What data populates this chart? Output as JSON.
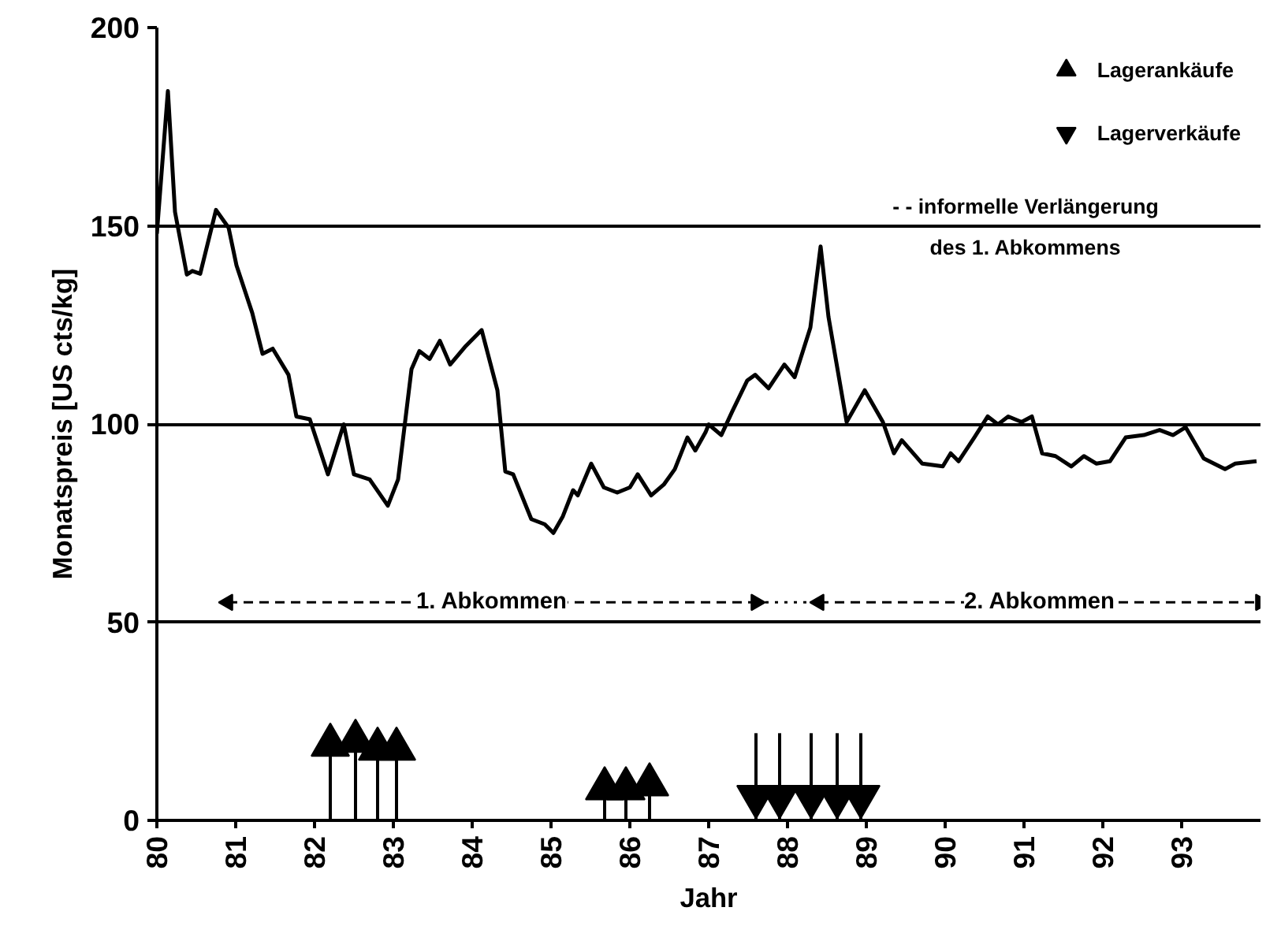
{
  "chart_data": {
    "type": "line",
    "xlabel": "Jahr",
    "ylabel": "Monatspreis [US cts/kg]",
    "xlim": [
      80,
      94
    ],
    "xticks": [
      80,
      81,
      82,
      83,
      84,
      85,
      86,
      87,
      88,
      89,
      90,
      91,
      92,
      93
    ],
    "ylim": [
      0,
      200
    ],
    "yticks": [
      0,
      50,
      100,
      150,
      200
    ],
    "grid": "y",
    "legend": "top right",
    "series": [
      {
        "color": "#000000",
        "x": [
          80.0,
          80.14,
          80.23,
          80.38,
          80.45,
          80.55,
          80.75,
          80.91,
          81.01,
          81.21,
          81.34,
          81.47,
          81.67,
          81.77,
          81.94,
          82.17,
          82.37,
          82.5,
          82.7,
          82.93,
          83.06,
          83.23,
          83.33,
          83.46,
          83.59,
          83.72,
          83.92,
          84.12,
          84.32,
          84.42,
          84.52,
          84.75,
          84.92,
          85.03,
          85.15,
          85.28,
          85.34,
          85.51,
          85.67,
          85.84,
          86.0,
          86.1,
          86.27,
          86.43,
          86.57,
          86.73,
          86.83,
          86.96,
          87.0,
          87.16,
          87.3,
          87.49,
          87.59,
          87.76,
          87.96,
          88.09,
          88.29,
          88.42,
          88.52,
          88.75,
          88.98,
          89.21,
          89.35,
          89.45,
          89.71,
          89.97,
          90.07,
          90.17,
          90.37,
          90.54,
          90.67,
          90.8,
          90.97,
          91.1,
          91.23,
          91.4,
          91.6,
          91.76,
          91.92,
          92.09,
          92.29,
          92.52,
          92.72,
          92.89,
          93.05,
          93.28,
          93.55,
          93.68,
          93.95
        ],
        "values": [
          148,
          184,
          153.5,
          137.7,
          138.6,
          137.9,
          154,
          149.5,
          140,
          128,
          117.7,
          119,
          112.4,
          101.9,
          101.2,
          87.3,
          99.9,
          87.3,
          86,
          79.4,
          86,
          113.8,
          118.4,
          116.4,
          121,
          115,
          119.7,
          123.7,
          108.5,
          88,
          87.3,
          76,
          74.7,
          72.5,
          76.7,
          83.3,
          82,
          90,
          84,
          82.7,
          84,
          87.3,
          82,
          84.7,
          88.6,
          96.6,
          93.3,
          97.9,
          99.9,
          97.2,
          103.2,
          111,
          112.4,
          109,
          115,
          111.8,
          124.3,
          144.8,
          127,
          100.5,
          108.5,
          100.5,
          92.6,
          95.9,
          90,
          89.3,
          92.6,
          90.6,
          96.6,
          101.9,
          99.9,
          101.9,
          100.5,
          101.9,
          92.6,
          91.9,
          89.3,
          91.9,
          90,
          90.6,
          96.6,
          97.2,
          98.5,
          97.2,
          99.2,
          91.3,
          88.6,
          90,
          90.6
        ]
      },
      {
        "type": "lollipop",
        "name": "Lagerankäufe",
        "color": "#000000",
        "marker": "triangle",
        "x": [
          82.2,
          82.52,
          82.8,
          83.04,
          85.68,
          85.95,
          86.25
        ],
        "values": [
          19,
          20,
          18,
          18,
          8,
          8,
          9
        ]
      },
      {
        "type": "scatter",
        "name": "Lagerverkäufe",
        "color": "#000000",
        "marker": "triangle",
        "x": [
          87.6,
          87.9,
          88.3,
          88.63,
          88.93
        ],
        "values": [
          6,
          6,
          6,
          6,
          6
        ],
        "errors": [
          [
            0,
            22
          ],
          [
            0,
            22
          ],
          [
            0,
            22
          ],
          [
            0,
            22
          ],
          [
            0,
            22
          ]
        ]
      },
      {
        "name": "1. Abkommen",
        "color": "#000000",
        "line_style": "dashed",
        "marker": "triangle",
        "x": [
          80.9,
          87.6
        ],
        "values": [
          55,
          55
        ]
      },
      {
        "color": "#000000",
        "line_style": "dotted",
        "x": [
          87.6,
          88.4
        ],
        "values": [
          55,
          55
        ]
      },
      {
        "name": "2. Abkommen",
        "color": "#000000",
        "line_style": "dashed",
        "marker": "triangle",
        "x": [
          88.4,
          94
        ],
        "values": [
          55,
          55
        ]
      }
    ],
    "annotations": [
      "- - informelle Verlängerung\ndes 1. Abkommens"
    ]
  }
}
